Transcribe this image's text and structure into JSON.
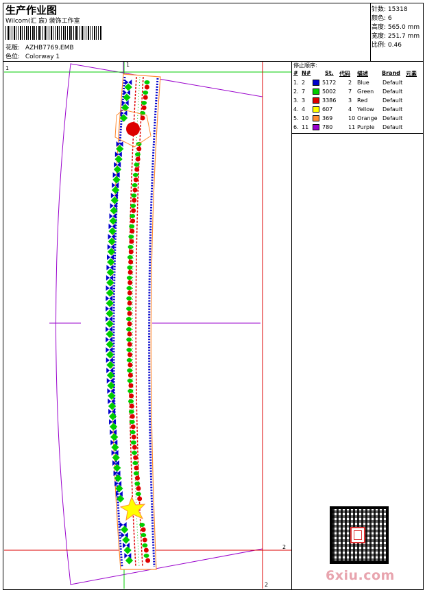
{
  "header": {
    "title": "生产作业图",
    "studio": "Wilcom(汇 宸) 装饰工作室",
    "design_label": "花版:",
    "design_value": "AZHB7769.EMB",
    "colorway_label": "色位:",
    "colorway_value": "Colorway 1"
  },
  "stats": [
    {
      "label": "针数:",
      "value": "15318"
    },
    {
      "label": "颜色:",
      "value": "6"
    },
    {
      "label": "高度:",
      "value": "565.0 mm"
    },
    {
      "label": "宽度:",
      "value": "251.7 mm"
    },
    {
      "label": "比例:",
      "value": "0.46"
    }
  ],
  "stop_sequence": {
    "title": "停止顺序:",
    "columns": [
      "#",
      "N#",
      "St.",
      "代码",
      "描述",
      "Brand",
      "元素"
    ],
    "rows": [
      {
        "index": "1.",
        "n": "2",
        "stitches": "5172",
        "code": "2",
        "desc": "Blue",
        "brand": "Default",
        "color": "#0000cc"
      },
      {
        "index": "2.",
        "n": "7",
        "stitches": "5002",
        "code": "7",
        "desc": "Green",
        "brand": "Default",
        "color": "#00cc00"
      },
      {
        "index": "3.",
        "n": "3",
        "stitches": "3386",
        "code": "3",
        "desc": "Red",
        "brand": "Default",
        "color": "#dd0000"
      },
      {
        "index": "4.",
        "n": "4",
        "stitches": "607",
        "code": "4",
        "desc": "Yellow",
        "brand": "Default",
        "color": "#ffff00"
      },
      {
        "index": "5.",
        "n": "10",
        "stitches": "369",
        "code": "10",
        "desc": "Orange",
        "brand": "Default",
        "color": "#ff8c33"
      },
      {
        "index": "6.",
        "n": "11",
        "stitches": "780",
        "code": "11",
        "desc": "Purple",
        "brand": "Default",
        "color": "#9900cc"
      }
    ]
  },
  "markers": {
    "one": "1",
    "two": "2"
  },
  "watermark": {
    "site": "6xiu.com"
  }
}
